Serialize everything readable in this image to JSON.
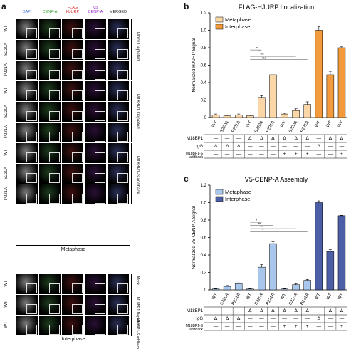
{
  "panel_a": {
    "letter": "a",
    "channels": [
      {
        "label": "DAPI",
        "color": "#3a6fd8"
      },
      {
        "label": "CENP-A",
        "color": "#2ca02c"
      },
      {
        "label": "FLAG\nHJURP",
        "color": "#d62728"
      },
      {
        "label": "V5\nCENP-A",
        "color": "#9b30c8"
      },
      {
        "label": "MERGED",
        "color": "#222222"
      }
    ],
    "metaphase_rows": [
      "WT",
      "S220A",
      "P221A",
      "WT",
      "S220A",
      "P221A",
      "WT",
      "S220A",
      "P221A"
    ],
    "interphase_rows": [
      "WT",
      "WT",
      "WT"
    ],
    "metaphase_groups": [
      "Mock Depleted",
      "M18BP1 Depleted",
      "M18BP1-S addback"
    ],
    "interphase_groups": [
      "Mock",
      "M18BP1 Depleted",
      "M18BP1-S addback"
    ],
    "metaphase_label": "Metaphase",
    "interphase_label": "Interphase"
  },
  "panel_b": {
    "letter": "b"
  },
  "panel_c": {
    "letter": "c"
  },
  "chart_data": [
    {
      "type": "bar",
      "title": "FLAG-HJURP Localization",
      "ylabel": "Normalized HJURP Signal",
      "ylim": [
        0,
        1.2
      ],
      "yticks": [
        "0",
        "0.2",
        "0.4",
        "0.6",
        "0.8",
        "1.0",
        "1.2"
      ],
      "categories": [
        "WT",
        "S220A",
        "P221A",
        "WT",
        "S220A",
        "P221A",
        "WT",
        "S220A",
        "P221A",
        "WT",
        "WT",
        "WT"
      ],
      "values": [
        0.03,
        0.02,
        0.03,
        0.02,
        0.23,
        0.49,
        0.04,
        0.08,
        0.15,
        1.0,
        0.49,
        0.8
      ],
      "errors": [
        0.01,
        0.01,
        0.01,
        0.01,
        0.02,
        0.02,
        0.01,
        0.02,
        0.03,
        0.04,
        0.04,
        0.01
      ],
      "phase": [
        "m",
        "m",
        "m",
        "m",
        "m",
        "m",
        "m",
        "m",
        "m",
        "i",
        "i",
        "i"
      ],
      "legend": [
        {
          "name": "Metaphase",
          "color": "#fbd7a8"
        },
        {
          "name": "Interphase",
          "color": "#f29a3c"
        }
      ],
      "sig_marks": [
        "**",
        "**",
        "***",
        "n.s"
      ],
      "table": [
        {
          "label": "M18BP1",
          "cells": [
            "—",
            "—",
            "—",
            "Δ",
            "Δ",
            "Δ",
            "Δ",
            "Δ",
            "Δ",
            "—",
            "Δ",
            "Δ"
          ]
        },
        {
          "label": "IgG",
          "cells": [
            "Δ",
            "Δ",
            "Δ",
            "—",
            "—",
            "—",
            "—",
            "—",
            "—",
            "Δ",
            "—",
            "—"
          ]
        },
        {
          "label": "M18BP1-S\naddback",
          "cells": [
            "—",
            "—",
            "—",
            "—",
            "—",
            "—",
            "+",
            "+",
            "+",
            "—",
            "—",
            "+"
          ]
        }
      ]
    },
    {
      "type": "bar",
      "title": "V5-CENP-A Assembly",
      "ylabel": "Normalized V5-CENP-A Signal",
      "ylim": [
        0,
        1.2
      ],
      "yticks": [
        "0",
        "0.2",
        "0.4",
        "0.6",
        "0.8",
        "1.0",
        "1.2"
      ],
      "categories": [
        "WT",
        "S220A",
        "P221A",
        "WT",
        "S220A",
        "P221A",
        "WT",
        "S220A",
        "P221A",
        "WT",
        "WT",
        "WT"
      ],
      "values": [
        0.01,
        0.04,
        0.07,
        0.01,
        0.26,
        0.53,
        0.01,
        0.06,
        0.11,
        1.0,
        0.44,
        0.85
      ],
      "errors": [
        0.005,
        0.01,
        0.01,
        0.005,
        0.03,
        0.02,
        0.005,
        0.01,
        0.01,
        0.02,
        0.02,
        0.005
      ],
      "phase": [
        "m",
        "m",
        "m",
        "m",
        "m",
        "m",
        "m",
        "m",
        "m",
        "i",
        "i",
        "i"
      ],
      "legend": [
        {
          "name": "Metaphase",
          "color": "#a9c6ec"
        },
        {
          "name": "Interphase",
          "color": "#4c5ea6"
        }
      ],
      "sig_marks": [
        "*",
        "**",
        "**",
        "*"
      ],
      "table": [
        {
          "label": "M18BP1",
          "cells": [
            "—",
            "—",
            "—",
            "Δ",
            "Δ",
            "Δ",
            "Δ",
            "Δ",
            "Δ",
            "—",
            "Δ",
            "Δ"
          ]
        },
        {
          "label": "IgG",
          "cells": [
            "Δ",
            "Δ",
            "Δ",
            "—",
            "—",
            "—",
            "—",
            "—",
            "—",
            "Δ",
            "—",
            "—"
          ]
        },
        {
          "label": "M18BP1-S\naddback",
          "cells": [
            "—",
            "—",
            "—",
            "—",
            "—",
            "—",
            "+",
            "+",
            "+",
            "—",
            "—",
            "+"
          ]
        }
      ]
    }
  ]
}
